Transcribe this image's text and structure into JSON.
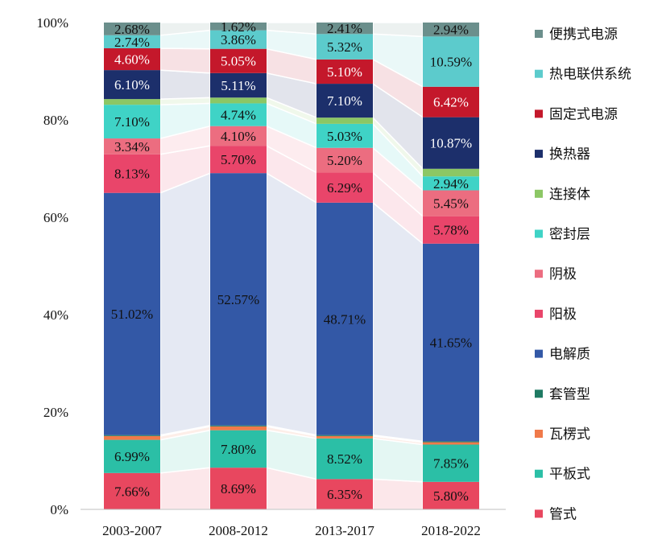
{
  "chart_data": {
    "type": "bar",
    "stacked": true,
    "normalized": true,
    "categories": [
      "2003-2007",
      "2008-2012",
      "2013-2017",
      "2018-2022"
    ],
    "ylim": [
      0,
      100
    ],
    "yticks": [
      "0%",
      "20%",
      "40%",
      "60%",
      "80%",
      "100%"
    ],
    "legend_position": "right",
    "series": [
      {
        "name": "管式",
        "color": "#e8475f",
        "values": [
          7.66,
          8.69,
          6.35,
          5.8
        ],
        "labels": [
          "7.66%",
          "8.69%",
          "6.35%",
          "5.80%"
        ]
      },
      {
        "name": "平板式",
        "color": "#2bbfa6",
        "values": [
          6.99,
          7.8,
          8.52,
          7.85
        ],
        "labels": [
          "6.99%",
          "7.80%",
          "8.52%",
          "7.85%"
        ]
      },
      {
        "name": "瓦楞式",
        "color": "#f07a4a",
        "values": [
          0.8,
          0.8,
          0.5,
          0.5
        ],
        "labels": [
          "",
          "",
          "",
          ""
        ]
      },
      {
        "name": "套管型",
        "color": "#1f7a63",
        "values": [
          0.2,
          0.2,
          0.2,
          0.2
        ],
        "labels": [
          "",
          "",
          "",
          ""
        ]
      },
      {
        "name": "电解质",
        "color": "#3358a6",
        "values": [
          51.02,
          52.57,
          48.71,
          41.65
        ],
        "labels": [
          "51.02%",
          "52.57%",
          "48.71%",
          "41.65%"
        ]
      },
      {
        "name": "阳极",
        "color": "#e9456a",
        "values": [
          8.13,
          5.7,
          6.29,
          5.78
        ],
        "labels": [
          "8.13%",
          "5.70%",
          "6.29%",
          "5.78%"
        ]
      },
      {
        "name": "阴极",
        "color": "#ec6d80",
        "values": [
          3.34,
          4.1,
          5.2,
          5.45
        ],
        "labels": [
          "3.34%",
          "4.10%",
          "5.20%",
          "5.45%"
        ]
      },
      {
        "name": "密封层",
        "color": "#3fd3c6",
        "values": [
          7.1,
          4.74,
          5.03,
          2.94
        ],
        "labels": [
          "7.10%",
          "4.74%",
          "5.03%",
          "2.94%"
        ]
      },
      {
        "name": "连接体",
        "color": "#8cc765",
        "values": [
          1.2,
          1.2,
          1.3,
          1.6
        ],
        "labels": [
          "",
          "",
          "",
          ""
        ]
      },
      {
        "name": "换热器",
        "color": "#1c2f6b",
        "values": [
          6.1,
          5.11,
          7.1,
          10.87
        ],
        "labels": [
          "6.10%",
          "5.11%",
          "7.10%",
          "10.87%"
        ]
      },
      {
        "name": "固定式电源",
        "color": "#c4182b",
        "values": [
          4.6,
          5.05,
          5.1,
          6.42
        ],
        "labels": [
          "4.60%",
          "5.05%",
          "5.10%",
          "6.42%"
        ]
      },
      {
        "name": "热电联供系统",
        "color": "#5ccbcc",
        "values": [
          2.74,
          3.86,
          5.32,
          10.59
        ],
        "labels": [
          "2.74%",
          "3.86%",
          "5.32%",
          "10.59%"
        ]
      },
      {
        "name": "便携式电源",
        "color": "#6b8f8c",
        "values": [
          2.68,
          1.62,
          2.41,
          2.94
        ],
        "labels": [
          "2.68%",
          "1.62%",
          "2.41%",
          "2.94%"
        ]
      }
    ]
  }
}
